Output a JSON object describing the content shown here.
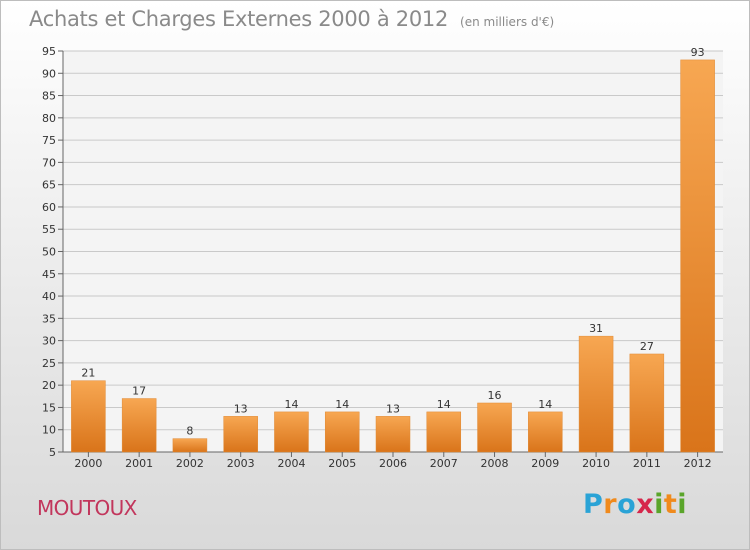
{
  "title": "Achats et Charges Externes 2000 à 2012",
  "title_unit": "(en milliers d'€)",
  "municipality": "MOUTOUX",
  "logo": {
    "text": "Proxiti",
    "letters": [
      {
        "ch": "P",
        "color": "#2aa3d6"
      },
      {
        "ch": "r",
        "color": "#f08a1c"
      },
      {
        "ch": "o",
        "color": "#2aa3d6"
      },
      {
        "ch": "x",
        "color": "#d6274b"
      },
      {
        "ch": "i",
        "color": "#5aa52a"
      },
      {
        "ch": "t",
        "color": "#f08a1c"
      },
      {
        "ch": "i",
        "color": "#5aa52a"
      }
    ]
  },
  "colors": {
    "bar_light": "#f7a752",
    "bar_dark": "#d9741a",
    "grid": "#c9c9c9",
    "axis_text": "#333333"
  },
  "chart_data": {
    "type": "bar",
    "categories": [
      "2000",
      "2001",
      "2002",
      "2003",
      "2004",
      "2005",
      "2006",
      "2007",
      "2008",
      "2009",
      "2010",
      "2011",
      "2012"
    ],
    "values": [
      21,
      17,
      8,
      13,
      14,
      14,
      13,
      14,
      16,
      14,
      31,
      27,
      93
    ],
    "ylim": [
      5,
      95
    ],
    "yticks": [
      5,
      10,
      15,
      20,
      25,
      30,
      35,
      40,
      45,
      50,
      55,
      60,
      65,
      70,
      75,
      80,
      85,
      90,
      95
    ],
    "grid": true,
    "xlabel": "",
    "ylabel": ""
  }
}
